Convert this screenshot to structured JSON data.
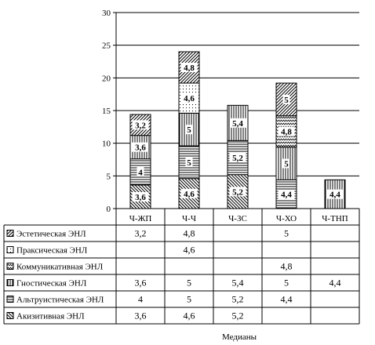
{
  "chart_data": {
    "type": "bar",
    "stacked": true,
    "categories": [
      "Ч-ЖП",
      "Ч-Ч",
      "Ч-ЗС",
      "Ч-ХО",
      "Ч-ТНП"
    ],
    "ylim": [
      0,
      30
    ],
    "yticks": [
      0,
      5,
      10,
      15,
      20,
      25,
      30
    ],
    "grid": true,
    "xlabel": "Медианы",
    "data_table": true,
    "series": [
      {
        "name": "Акизитивная ЭНЛ",
        "values": [
          3.6,
          4.6,
          5.2,
          null,
          null
        ],
        "labels": [
          "3,6",
          "4,6",
          "5,2",
          "",
          ""
        ],
        "pattern": "diag-down"
      },
      {
        "name": "Альтруистическая ЭНЛ",
        "values": [
          4,
          5,
          5.2,
          4.4,
          null
        ],
        "labels": [
          "4",
          "5",
          "5,2",
          "4,4",
          ""
        ],
        "pattern": "hlines"
      },
      {
        "name": "Гностическая ЭНЛ",
        "values": [
          3.6,
          5,
          5.4,
          5,
          4.4
        ],
        "labels": [
          "3,6",
          "5",
          "5,4",
          "5",
          "4,4"
        ],
        "pattern": "vlines"
      },
      {
        "name": "Коммуникативная ЭНЛ",
        "values": [
          null,
          null,
          null,
          4.8,
          null
        ],
        "labels": [
          "",
          "",
          "",
          "4,8",
          ""
        ],
        "pattern": "wave"
      },
      {
        "name": "Праксическая ЭНЛ",
        "values": [
          null,
          4.6,
          null,
          null,
          null
        ],
        "labels": [
          "",
          "4,6",
          "",
          "",
          ""
        ],
        "pattern": "dots"
      },
      {
        "name": "Эстетическая ЭНЛ",
        "values": [
          3.2,
          4.8,
          null,
          5,
          null
        ],
        "labels": [
          "3,2",
          "4,8",
          "",
          "5",
          ""
        ],
        "pattern": "diag-up"
      }
    ]
  }
}
